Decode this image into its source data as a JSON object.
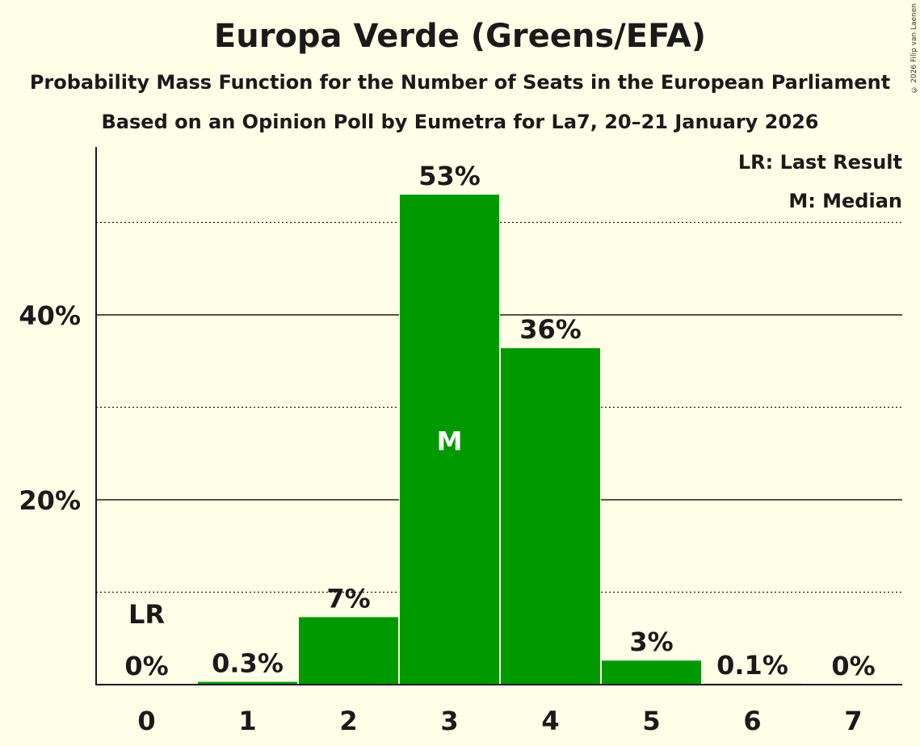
{
  "chart_data": {
    "type": "bar",
    "title": "Europa Verde (Greens/EFA)",
    "subtitle": "Probability Mass Function for the Number of Seats in the European Parliament",
    "subtitle2": "Based on an Opinion Poll by Eumetra for La7, 20–21 January 2026",
    "copyright": "© 2026 Filip van Laenen",
    "categories": [
      "0",
      "1",
      "2",
      "3",
      "4",
      "5",
      "6",
      "7"
    ],
    "values": [
      0,
      0.3,
      7.3,
      53,
      36.4,
      2.6,
      0.1,
      0
    ],
    "value_labels": [
      "0%",
      "0.3%",
      "7%",
      "53%",
      "36%",
      "3%",
      "0.1%",
      "0%"
    ],
    "ylim": [
      0,
      58
    ],
    "yticks": [
      {
        "value": 20,
        "label": "20%"
      },
      {
        "value": 40,
        "label": "40%"
      }
    ],
    "minor_gridlines": [
      10,
      30,
      50
    ],
    "bar_color": "#009900",
    "last_result_index": 0,
    "last_result_marker": "LR",
    "median_index": 3,
    "median_marker": "M",
    "legend": {
      "position": "top-right",
      "last_result": "LR: Last Result",
      "median": "M: Median"
    }
  }
}
